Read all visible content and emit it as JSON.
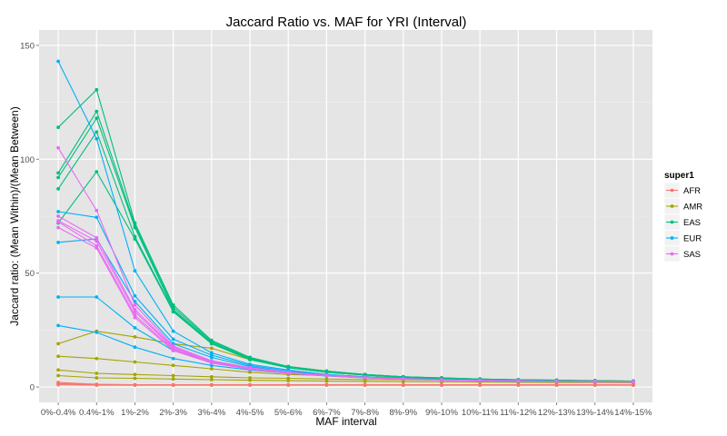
{
  "chart_data": {
    "type": "line",
    "title": "Jaccard Ratio vs. MAF for YRI (Interval)",
    "xlabel": "MAF interval",
    "ylabel": "Jaccard ratio: (Mean Within)/(Mean Between)",
    "categories": [
      "0%-0.4%",
      "0.4%-1%",
      "1%-2%",
      "2%-3%",
      "3%-4%",
      "4%-5%",
      "5%-6%",
      "6%-7%",
      "7%-8%",
      "8%-9%",
      "9%-10%",
      "10%-11%",
      "11%-12%",
      "12%-13%",
      "13%-14%",
      "14%-15%"
    ],
    "ylim": [
      0,
      150
    ],
    "yticks": [
      0,
      50,
      100,
      150
    ],
    "grid": true,
    "legend": {
      "title": "super1",
      "position": "right"
    },
    "colors": {
      "AFR": "#F8766D",
      "AMR": "#A3A500",
      "EAS": "#00BF7D",
      "EUR": "#00B0F6",
      "SAS": "#E76BF3"
    },
    "series": [
      {
        "name": "AFR",
        "values": [
          2,
          1.2,
          1,
          1,
          1,
          1,
          1,
          1,
          1,
          1,
          1,
          1,
          1,
          1,
          1,
          1
        ]
      },
      {
        "name": "AFR",
        "values": [
          1.5,
          1,
          0.9,
          0.9,
          0.9,
          0.9,
          0.9,
          0.9,
          0.9,
          0.9,
          0.9,
          0.9,
          0.9,
          0.9,
          0.9,
          0.9
        ]
      },
      {
        "name": "AFR",
        "values": [
          1,
          0.8,
          0.8,
          0.8,
          0.8,
          0.8,
          0.8,
          0.8,
          0.8,
          0.8,
          0.8,
          0.8,
          0.8,
          0.8,
          0.8,
          0.8
        ]
      },
      {
        "name": "AMR",
        "values": [
          19,
          24.5,
          22,
          19,
          17,
          12,
          9,
          7,
          5.5,
          4.5,
          4,
          3.5,
          3.2,
          3,
          2.8,
          2.6
        ]
      },
      {
        "name": "AMR",
        "values": [
          13.5,
          12.5,
          11,
          9.5,
          8,
          6.5,
          5.5,
          5,
          4.5,
          4,
          3.5,
          3.2,
          3,
          2.8,
          2.6,
          2.5
        ]
      },
      {
        "name": "AMR",
        "values": [
          7.5,
          6,
          5.5,
          5,
          4.5,
          4,
          3.8,
          3.5,
          3.3,
          3.2,
          3,
          2.8,
          2.6,
          2.5,
          2.4,
          2.3
        ]
      },
      {
        "name": "AMR",
        "values": [
          5,
          4,
          3.8,
          3.5,
          3.2,
          3,
          2.8,
          2.6,
          2.5,
          2.4,
          2.3,
          2.2,
          2.1,
          2,
          2,
          1.9
        ]
      },
      {
        "name": "EAS",
        "values": [
          114,
          130.5,
          72,
          36,
          20.5,
          13,
          9,
          7,
          5.5,
          4.5,
          4,
          3.5,
          3.2,
          3,
          2.8,
          2.6
        ]
      },
      {
        "name": "EAS",
        "values": [
          94,
          121,
          71,
          35,
          20,
          13,
          9,
          7,
          5.5,
          4.5,
          4,
          3.5,
          3.2,
          3,
          2.8,
          2.6
        ]
      },
      {
        "name": "EAS",
        "values": [
          92,
          118,
          70,
          34,
          19.5,
          12.5,
          8.5,
          6.5,
          5.3,
          4.4,
          3.9,
          3.4,
          3.1,
          2.9,
          2.7,
          2.5
        ]
      },
      {
        "name": "EAS",
        "values": [
          87,
          112,
          66,
          33.5,
          19,
          12.5,
          8.5,
          6.5,
          5.2,
          4.3,
          3.8,
          3.3,
          3,
          2.8,
          2.7,
          2.5
        ]
      },
      {
        "name": "EAS",
        "values": [
          72,
          94.5,
          65,
          33,
          19,
          12,
          8.5,
          6.5,
          5.2,
          4.3,
          3.8,
          3.3,
          3,
          2.8,
          2.6,
          2.5
        ]
      },
      {
        "name": "EUR",
        "values": [
          143,
          109,
          51,
          24.5,
          15,
          10,
          7.5,
          5.5,
          4.5,
          3.8,
          3.3,
          3,
          2.8,
          2.6,
          2.4,
          2.3
        ]
      },
      {
        "name": "EUR",
        "values": [
          77,
          74.5,
          40,
          21,
          14,
          9.5,
          7,
          5.5,
          4.5,
          3.8,
          3.3,
          3,
          2.8,
          2.6,
          2.4,
          2.3
        ]
      },
      {
        "name": "EUR",
        "values": [
          63.5,
          65,
          37.5,
          19,
          13,
          9,
          6.5,
          5.2,
          4.3,
          3.7,
          3.2,
          2.9,
          2.7,
          2.5,
          2.4,
          2.3
        ]
      },
      {
        "name": "EUR",
        "values": [
          39.5,
          39.5,
          26,
          16,
          11.5,
          8.5,
          6.5,
          5,
          4.2,
          3.6,
          3.1,
          2.8,
          2.6,
          2.5,
          2.3,
          2.2
        ]
      },
      {
        "name": "EUR",
        "values": [
          27,
          24,
          17.5,
          12.5,
          9.5,
          7.5,
          6,
          4.8,
          4,
          3.5,
          3,
          2.7,
          2.5,
          2.4,
          2.3,
          2.2
        ]
      },
      {
        "name": "SAS",
        "values": [
          105,
          77.5,
          36,
          18,
          11.5,
          8.5,
          6.5,
          5.2,
          4.3,
          3.7,
          3.2,
          2.9,
          2.7,
          2.5,
          2.4,
          2.3
        ]
      },
      {
        "name": "SAS",
        "values": [
          75,
          65.5,
          34,
          17.5,
          11,
          8.5,
          6.5,
          5.1,
          4.2,
          3.6,
          3.1,
          2.9,
          2.7,
          2.5,
          2.4,
          2.3
        ]
      },
      {
        "name": "SAS",
        "values": [
          73,
          64,
          33,
          17,
          11,
          8,
          6.3,
          5,
          4.2,
          3.6,
          3.1,
          2.8,
          2.6,
          2.5,
          2.4,
          2.3
        ]
      },
      {
        "name": "SAS",
        "values": [
          72.5,
          62,
          31.5,
          16.5,
          10.5,
          8,
          6.2,
          5,
          4.1,
          3.5,
          3.1,
          2.8,
          2.6,
          2.5,
          2.4,
          2.3
        ]
      },
      {
        "name": "SAS",
        "values": [
          70,
          61,
          30.5,
          16,
          10.5,
          7.8,
          6,
          4.9,
          4.1,
          3.5,
          3,
          2.8,
          2.6,
          2.5,
          2.4,
          2.3
        ]
      }
    ]
  }
}
